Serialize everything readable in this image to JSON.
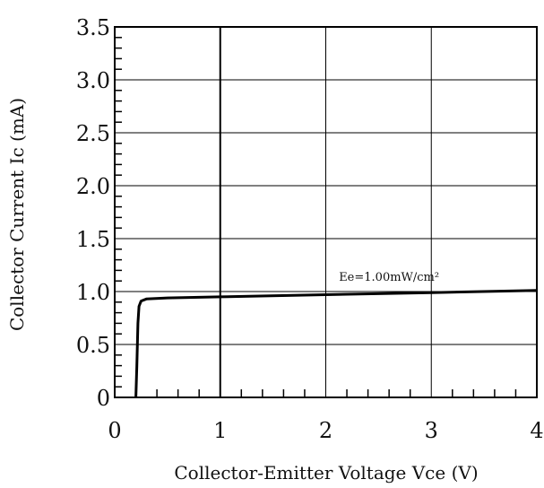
{
  "chart_data": {
    "type": "line",
    "title": "",
    "xlabel": "Collector-Emitter Voltage Vce (V)",
    "ylabel": "Collector Current Ic (mA)",
    "xlim": [
      0,
      4
    ],
    "ylim": [
      0,
      3.5
    ],
    "x_ticks": [
      "0",
      "1",
      "2",
      "3",
      "4"
    ],
    "y_ticks": [
      "0",
      "0.5",
      "1.0",
      "1.5",
      "2.0",
      "2.5",
      "3.0",
      "3.5"
    ],
    "grid": true,
    "series": [
      {
        "name": "Ee=1.00mW/cm²",
        "x": [
          0.2,
          0.21,
          0.22,
          0.23,
          0.25,
          0.3,
          0.5,
          1.0,
          2.0,
          3.0,
          4.0
        ],
        "y": [
          0.0,
          0.3,
          0.7,
          0.86,
          0.91,
          0.93,
          0.94,
          0.95,
          0.97,
          0.99,
          1.01
        ]
      }
    ],
    "annotations": [
      {
        "text": "Ee=1.00mW/cm²",
        "x": 2.6,
        "y": 1.1
      }
    ],
    "colors": {
      "line": "#000000",
      "grid": "#000000",
      "background": "#ffffff"
    }
  }
}
